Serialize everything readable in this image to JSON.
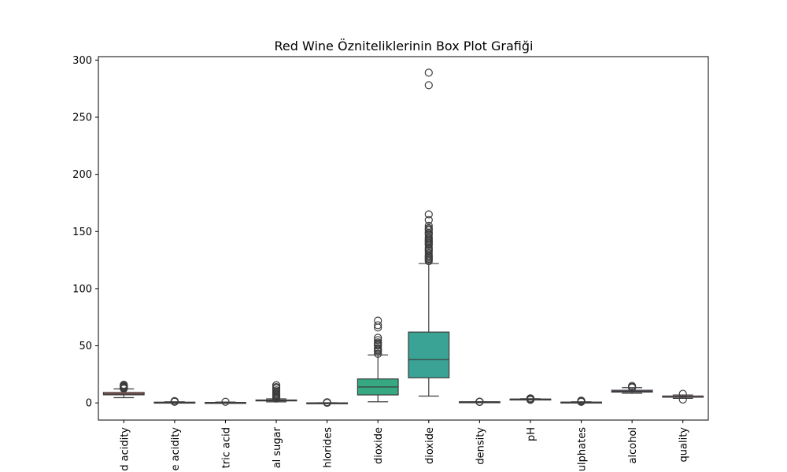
{
  "chart_data": {
    "type": "box",
    "title": "Red Wine Özniteliklerinin Box Plot Grafiği",
    "xlabel": "",
    "ylabel": "",
    "ylim": [
      -15,
      303
    ],
    "yticks": [
      0,
      50,
      100,
      150,
      200,
      250,
      300
    ],
    "grid": false,
    "categories": [
      "fixed acidity",
      "volatile acidity",
      "citric acid",
      "residual sugar",
      "chlorides",
      "free sulfur dioxide",
      "total sulfur dioxide",
      "density",
      "pH",
      "sulphates",
      "alcohol",
      "quality"
    ],
    "visible_tick_text": [
      "d acidity",
      "e acidity",
      "tric acid",
      "al sugar",
      "hlorides",
      "dioxide",
      "dioxide",
      "density",
      "pH",
      "ulphates",
      "alcohol",
      "quality"
    ],
    "boxes": [
      {
        "name": "fixed acidity",
        "color": "#e8827a",
        "whislo": 4.6,
        "q1": 7.1,
        "med": 7.9,
        "q3": 9.2,
        "whishi": 12.3,
        "fliers": [
          12.5,
          12.8,
          13.0,
          13.3,
          13.7,
          14.0,
          14.3,
          15.0,
          15.6,
          15.9
        ]
      },
      {
        "name": "volatile acidity",
        "color": "#d89a3c",
        "whislo": 0.12,
        "q1": 0.39,
        "med": 0.52,
        "q3": 0.64,
        "whishi": 1.02,
        "fliers": [
          1.04,
          1.1,
          1.18,
          1.24,
          1.33,
          1.58
        ]
      },
      {
        "name": "citric acid",
        "color": "#b8a23a",
        "whislo": 0.0,
        "q1": 0.09,
        "med": 0.26,
        "q3": 0.42,
        "whishi": 0.79,
        "fliers": [
          1.0
        ]
      },
      {
        "name": "residual sugar",
        "color": "#8cb23e",
        "whislo": 0.9,
        "q1": 1.9,
        "med": 2.2,
        "q3": 2.6,
        "whishi": 3.6,
        "fliers": [
          3.8,
          4.2,
          4.8,
          5.5,
          6.2,
          7.0,
          7.9,
          8.8,
          9.9,
          11.0,
          12.9,
          13.8,
          15.4,
          15.5
        ]
      },
      {
        "name": "chlorides",
        "color": "#4cb04c",
        "whislo": 0.012,
        "q1": 0.07,
        "med": 0.079,
        "q3": 0.09,
        "whishi": 0.119,
        "fliers": [
          0.15,
          0.25,
          0.36,
          0.41,
          0.47,
          0.61
        ]
      },
      {
        "name": "free sulfur dioxide",
        "color": "#36a882",
        "whislo": 1,
        "q1": 7,
        "med": 14,
        "q3": 21,
        "whishi": 42,
        "fliers": [
          43,
          45,
          46,
          47,
          48,
          50,
          51,
          52,
          53,
          55,
          57,
          66,
          68,
          72
        ]
      },
      {
        "name": "total sulfur dioxide",
        "color": "#3aa396",
        "whislo": 6,
        "q1": 22,
        "med": 38,
        "q3": 62,
        "whishi": 122,
        "fliers": [
          124,
          125,
          126,
          127,
          128,
          129,
          131,
          133,
          134,
          135,
          136,
          138,
          139,
          140,
          141,
          142,
          143,
          144,
          145,
          147,
          148,
          149,
          151,
          152,
          153,
          155,
          160,
          165,
          278,
          289
        ]
      },
      {
        "name": "density",
        "color": "#38a2b8",
        "whislo": 0.9922,
        "q1": 0.9956,
        "med": 0.9968,
        "q3": 0.9978,
        "whishi": 1.001,
        "fliers": [
          0.9901,
          0.9912,
          1.002,
          1.0032,
          1.0037
        ]
      },
      {
        "name": "pH",
        "color": "#4a9ad8",
        "whislo": 2.92,
        "q1": 3.21,
        "med": 3.31,
        "q3": 3.4,
        "whishi": 3.68,
        "fliers": [
          2.74,
          2.86,
          2.88,
          3.69,
          3.72,
          3.75,
          3.78,
          3.85,
          3.9,
          4.01
        ]
      },
      {
        "name": "sulphates",
        "color": "#9a8be0",
        "whislo": 0.33,
        "q1": 0.55,
        "med": 0.62,
        "q3": 0.73,
        "whishi": 0.99,
        "fliers": [
          1.02,
          1.08,
          1.14,
          1.2,
          1.28,
          1.36,
          1.59,
          1.62,
          1.95,
          2.0
        ]
      },
      {
        "name": "alcohol",
        "color": "#cf82d8",
        "whislo": 8.4,
        "q1": 9.5,
        "med": 10.2,
        "q3": 11.1,
        "whishi": 13.4,
        "fliers": [
          13.5,
          13.6,
          14.0,
          14.9
        ]
      },
      {
        "name": "quality",
        "color": "#e27fae",
        "whislo": 4,
        "q1": 5,
        "med": 6,
        "q3": 6,
        "whishi": 7,
        "fliers": [
          3,
          8
        ]
      }
    ]
  }
}
